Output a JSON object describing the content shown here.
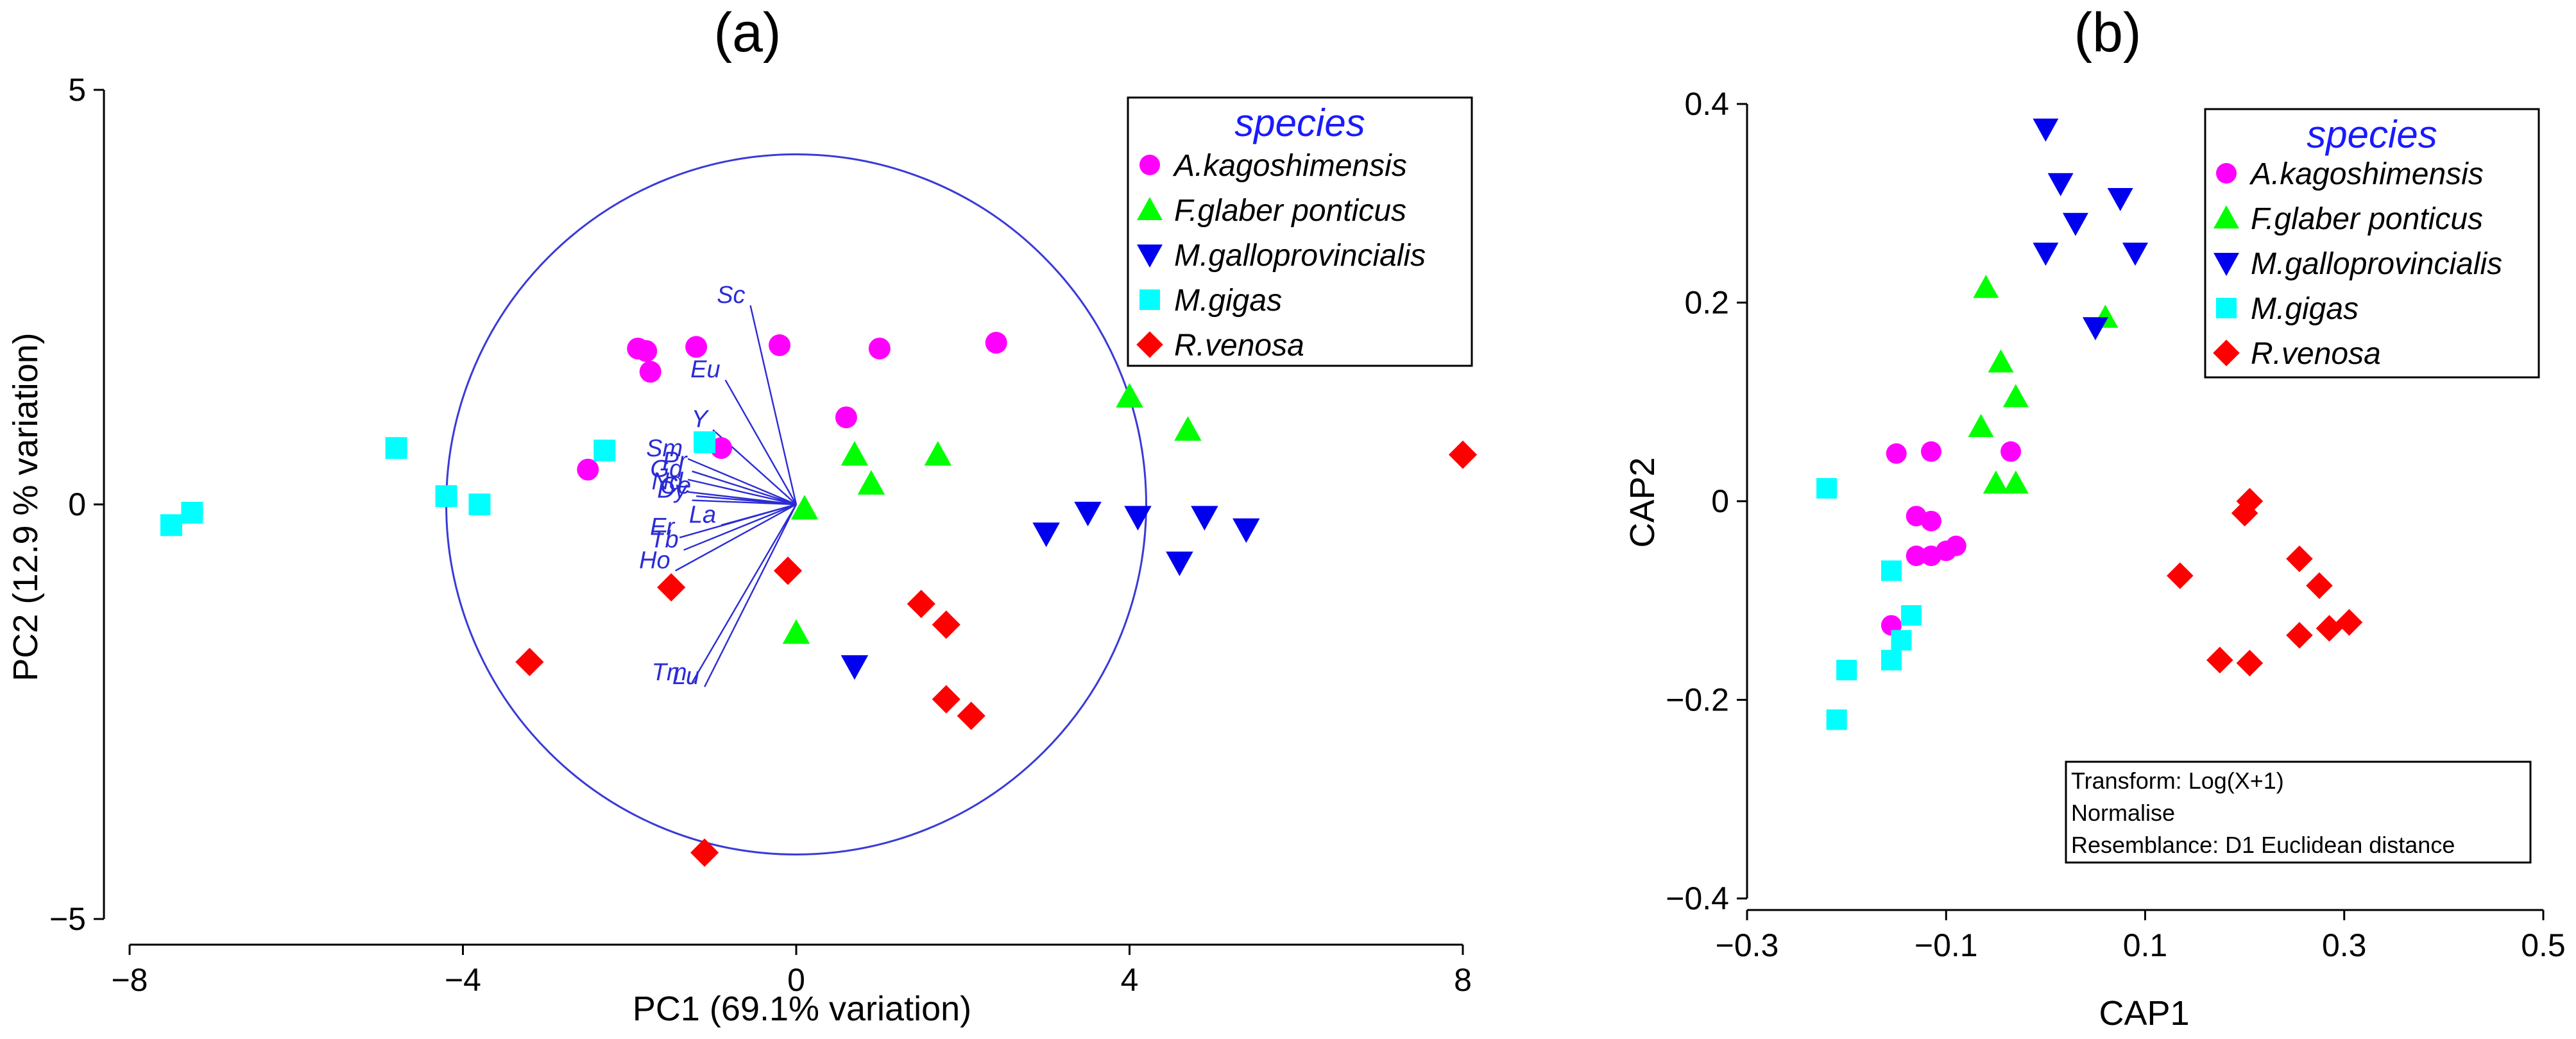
{
  "colors": {
    "A.kagoshimensis": "#ff00ff",
    "F.glaber ponticus": "#00ff00",
    "M.galloprovincialis": "#0000ee",
    "M.gigas": "#00ffff",
    "R.venosa": "#ff0000"
  },
  "chart_data": [
    {
      "type": "scatter",
      "title": "(a)",
      "xlabel": "PC1 (69.1% variation)",
      "ylabel": "PC2 (12.9 % variation)",
      "xlim": [
        -8,
        8
      ],
      "ylim": [
        -5,
        5
      ],
      "xticks": [
        -8,
        -4,
        0,
        4,
        8
      ],
      "yticks": [
        -5,
        0,
        5
      ],
      "legend": {
        "title": "species",
        "entries": [
          "A.kagoshimensis",
          "F.glaber ponticus",
          "M.galloprovincialis",
          "M.gigas",
          "R.venosa"
        ],
        "position": "top-right"
      },
      "series": [
        {
          "name": "A.kagoshimensis",
          "marker": "circle",
          "points": [
            [
              -1.9,
              1.88
            ],
            [
              -1.8,
              1.85
            ],
            [
              -1.75,
              1.6
            ],
            [
              -1.2,
              1.9
            ],
            [
              -0.2,
              1.92
            ],
            [
              1.0,
              1.88
            ],
            [
              2.4,
              1.95
            ],
            [
              0.6,
              1.05
            ],
            [
              -2.5,
              0.42
            ],
            [
              -0.9,
              0.68
            ]
          ]
        },
        {
          "name": "F.glaber ponticus",
          "marker": "triangle-up",
          "points": [
            [
              4.0,
              1.3
            ],
            [
              4.7,
              0.9
            ],
            [
              0.7,
              0.6
            ],
            [
              0.9,
              0.25
            ],
            [
              1.7,
              0.6
            ],
            [
              0.1,
              -0.05
            ],
            [
              0.0,
              -1.55
            ]
          ]
        },
        {
          "name": "M.galloprovincialis",
          "marker": "triangle-down",
          "points": [
            [
              3.0,
              -0.35
            ],
            [
              3.5,
              -0.1
            ],
            [
              4.1,
              -0.15
            ],
            [
              4.9,
              -0.15
            ],
            [
              5.4,
              -0.3
            ],
            [
              4.6,
              -0.7
            ],
            [
              0.7,
              -1.95
            ]
          ]
        },
        {
          "name": "M.gigas",
          "marker": "square",
          "points": [
            [
              -4.8,
              0.68
            ],
            [
              -2.3,
              0.65
            ],
            [
              -1.1,
              0.75
            ],
            [
              -4.2,
              0.1
            ],
            [
              -3.8,
              0.0
            ],
            [
              -7.5,
              -0.25
            ],
            [
              -7.25,
              -0.1
            ]
          ]
        },
        {
          "name": "R.venosa",
          "marker": "diamond",
          "points": [
            [
              8.0,
              0.6
            ],
            [
              -0.1,
              -0.8
            ],
            [
              -1.5,
              -1.0
            ],
            [
              1.5,
              -1.2
            ],
            [
              1.8,
              -1.45
            ],
            [
              -3.2,
              -1.9
            ],
            [
              1.8,
              -2.35
            ],
            [
              2.1,
              -2.55
            ],
            [
              -1.1,
              -4.2
            ]
          ]
        }
      ],
      "circle_radius": 4.2,
      "vectors": [
        {
          "label": "Sc",
          "end": [
            -0.55,
            2.4
          ]
        },
        {
          "label": "Eu",
          "end": [
            -0.85,
            1.5
          ]
        },
        {
          "label": "Y",
          "end": [
            -1.0,
            0.9
          ]
        },
        {
          "label": "Sm",
          "end": [
            -1.3,
            0.55
          ]
        },
        {
          "label": "Pr",
          "end": [
            -1.25,
            0.4
          ]
        },
        {
          "label": "Gd",
          "end": [
            -1.3,
            0.3
          ]
        },
        {
          "label": "Nd",
          "end": [
            -1.3,
            0.15
          ]
        },
        {
          "label": "Dy",
          "end": [
            -1.25,
            0.05
          ]
        },
        {
          "label": "Ce",
          "end": [
            -1.2,
            0.1
          ]
        },
        {
          "label": "La",
          "end": [
            -0.9,
            -0.25
          ]
        },
        {
          "label": "Er",
          "end": [
            -1.4,
            -0.4
          ]
        },
        {
          "label": "Tb",
          "end": [
            -1.35,
            -0.55
          ]
        },
        {
          "label": "Ho",
          "end": [
            -1.45,
            -0.8
          ]
        },
        {
          "label": "Tm",
          "end": [
            -1.25,
            -2.15
          ]
        },
        {
          "label": "Lu",
          "end": [
            -1.1,
            -2.2
          ]
        }
      ]
    },
    {
      "type": "scatter",
      "title": "(b)",
      "xlabel": "CAP1",
      "ylabel": "CAP2",
      "xlim": [
        -0.3,
        0.5
      ],
      "ylim": [
        -0.4,
        0.4
      ],
      "xticks": [
        -0.3,
        -0.1,
        0.1,
        0.3,
        0.5
      ],
      "yticks": [
        -0.4,
        -0.2,
        0,
        0.2,
        0.4
      ],
      "legend": {
        "title": "species",
        "entries": [
          "A.kagoshimensis",
          "F.glaber ponticus",
          "M.galloprovincialis",
          "M.gigas",
          "R.venosa"
        ],
        "position": "top-right"
      },
      "annotation": [
        "Transform: Log(X+1)",
        "Normalise",
        "Resemblance: D1 Euclidean distance"
      ],
      "series": [
        {
          "name": "A.kagoshimensis",
          "marker": "circle",
          "points": [
            [
              -0.15,
              0.048
            ],
            [
              -0.115,
              0.05
            ],
            [
              -0.035,
              0.05
            ],
            [
              -0.13,
              -0.015
            ],
            [
              -0.115,
              -0.02
            ],
            [
              -0.13,
              -0.055
            ],
            [
              -0.115,
              -0.055
            ],
            [
              -0.1,
              -0.05
            ],
            [
              -0.09,
              -0.045
            ],
            [
              -0.155,
              -0.125
            ]
          ]
        },
        {
          "name": "F.glaber ponticus",
          "marker": "triangle-up",
          "points": [
            [
              -0.06,
              0.215
            ],
            [
              0.06,
              0.185
            ],
            [
              -0.045,
              0.14
            ],
            [
              -0.03,
              0.105
            ],
            [
              -0.065,
              0.075
            ],
            [
              -0.05,
              0.018
            ],
            [
              -0.03,
              0.018
            ]
          ]
        },
        {
          "name": "M.galloprovincialis",
          "marker": "triangle-down",
          "points": [
            [
              0.0,
              0.375
            ],
            [
              0.015,
              0.32
            ],
            [
              0.075,
              0.305
            ],
            [
              0.03,
              0.28
            ],
            [
              0.0,
              0.25
            ],
            [
              0.09,
              0.25
            ],
            [
              0.05,
              0.175
            ]
          ]
        },
        {
          "name": "M.gigas",
          "marker": "square",
          "points": [
            [
              -0.22,
              0.013
            ],
            [
              -0.155,
              -0.07
            ],
            [
              -0.135,
              -0.115
            ],
            [
              -0.145,
              -0.14
            ],
            [
              -0.155,
              -0.16
            ],
            [
              -0.2,
              -0.17
            ],
            [
              -0.21,
              -0.22
            ]
          ]
        },
        {
          "name": "R.venosa",
          "marker": "diamond",
          "points": [
            [
              0.205,
              0.0
            ],
            [
              0.2,
              -0.012
            ],
            [
              0.135,
              -0.075
            ],
            [
              0.255,
              -0.058
            ],
            [
              0.275,
              -0.085
            ],
            [
              0.175,
              -0.16
            ],
            [
              0.205,
              -0.163
            ],
            [
              0.255,
              -0.135
            ],
            [
              0.285,
              -0.128
            ],
            [
              0.305,
              -0.122
            ]
          ]
        }
      ]
    }
  ]
}
